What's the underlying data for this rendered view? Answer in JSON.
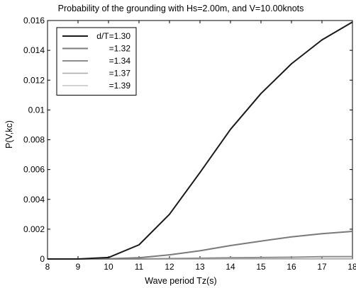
{
  "chart_data": {
    "type": "line",
    "title": "Probability of the grounding with Hs=2.00m, and V=10.00knots",
    "xlabel": "Wave period Tz(s)",
    "ylabel": "P(V,kc)",
    "xlim": [
      8,
      18
    ],
    "ylim": [
      0,
      0.016
    ],
    "xticks": [
      8,
      9,
      10,
      11,
      12,
      13,
      14,
      15,
      16,
      17,
      18
    ],
    "yticks": [
      0,
      0.002,
      0.004,
      0.006,
      0.008,
      0.01,
      0.012,
      0.014,
      0.016
    ],
    "ytick_labels": [
      "0",
      "0.002",
      "0.004",
      "0.006",
      "0.008",
      "0.01",
      "0.012",
      "0.014",
      "0.016"
    ],
    "grid": false,
    "legend_position": "top-left",
    "x": [
      8,
      9,
      10,
      11,
      12,
      13,
      14,
      15,
      16,
      17,
      18
    ],
    "series": [
      {
        "name": "d/T=1.30",
        "color": "#1a1a1a",
        "width": 2,
        "values": [
          0,
          0,
          0.0001,
          0.00095,
          0.003,
          0.0058,
          0.0087,
          0.0111,
          0.0131,
          0.0147,
          0.0159
        ]
      },
      {
        "name": "=1.32",
        "color": "#7a7a7a",
        "width": 2,
        "values": [
          0,
          0,
          2e-05,
          8e-05,
          0.00028,
          0.00055,
          0.0009,
          0.0012,
          0.00148,
          0.0017,
          0.00185
        ]
      },
      {
        "name": "=1.34",
        "color": "#8e8e8e",
        "width": 2,
        "values": [
          0,
          0,
          0,
          0,
          3e-05,
          5e-05,
          8e-05,
          0.0001,
          0.00012,
          0.00015,
          0.00016
        ]
      },
      {
        "name": "=1.37",
        "color": "#a8a8a8",
        "width": 1.5,
        "values": [
          0,
          0,
          0,
          0,
          0,
          0,
          1e-05,
          1e-05,
          1e-05,
          1e-05,
          1e-05
        ]
      },
      {
        "name": "=1.39",
        "color": "#c4c4c4",
        "width": 1.5,
        "values": [
          0,
          0,
          0,
          0,
          0,
          0,
          0,
          0,
          0,
          0,
          0
        ]
      }
    ]
  }
}
